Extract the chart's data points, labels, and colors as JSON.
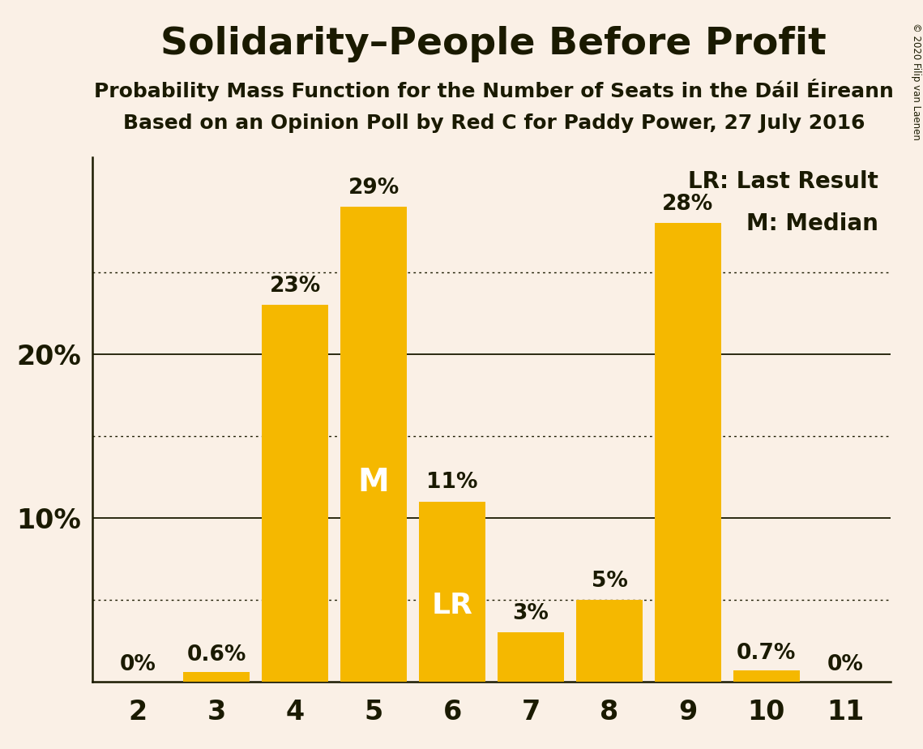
{
  "title": "Solidarity–People Before Profit",
  "subtitle1": "Probability Mass Function for the Number of Seats in the Dáil Éireann",
  "subtitle2": "Based on an Opinion Poll by Red C for Paddy Power, 27 July 2016",
  "copyright": "© 2020 Filip van Laenen",
  "categories": [
    2,
    3,
    4,
    5,
    6,
    7,
    8,
    9,
    10,
    11
  ],
  "values": [
    0.0,
    0.6,
    23.0,
    29.0,
    11.0,
    3.0,
    5.0,
    28.0,
    0.7,
    0.0
  ],
  "labels": [
    "0%",
    "0.6%",
    "23%",
    "29%",
    "11%",
    "3%",
    "5%",
    "28%",
    "0.7%",
    "0%"
  ],
  "bar_color": "#F5B800",
  "background_color": "#FAF0E6",
  "text_color": "#1A1A00",
  "solid_yticks": [
    10,
    20
  ],
  "dotted_yticks": [
    5,
    15,
    25
  ],
  "ylim": [
    0,
    32
  ],
  "legend_lr": "LR: Last Result",
  "legend_m": "M: Median",
  "median_bar": 5,
  "lr_bar": 6,
  "title_fontsize": 34,
  "subtitle_fontsize": 18,
  "label_fontsize": 19,
  "ytick_fontsize": 24,
  "xtick_fontsize": 24,
  "inside_label_fontsize": 28
}
